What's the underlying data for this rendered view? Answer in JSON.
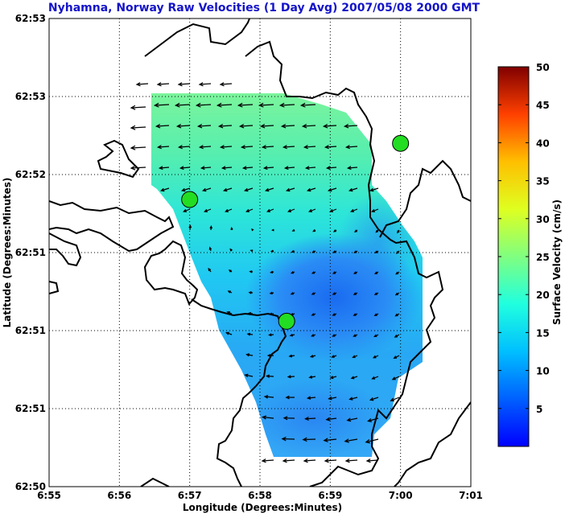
{
  "chart_data": {
    "type": "heatmap",
    "title": "Nyhamna, Norway Raw Velocities (1 Day Avg) 2007/05/08 2000 GMT",
    "xlabel": "Longitude (Degrees:Minutes)",
    "ylabel": "Latitude (Degrees:Minutes)",
    "x_ticks": [
      "6:55",
      "6:56",
      "6:57",
      "6:58",
      "6:59",
      "7:00",
      "7:01"
    ],
    "y_ticks": [
      "62:53",
      "62:53",
      "62:52",
      "62:51",
      "62:51",
      "62:51",
      "62:50"
    ],
    "grid": true,
    "colorbar": {
      "label": "Surface Velocity (cm/s)",
      "ticks": [
        5,
        10,
        15,
        20,
        25,
        30,
        35,
        40,
        45,
        50
      ],
      "range": [
        0,
        50
      ],
      "colormap": "jet"
    },
    "sites": [
      {
        "lon": 6.95,
        "lat": 62.864
      },
      {
        "lon": 6.973,
        "lat": 62.851
      },
      {
        "lon": 7.0,
        "lat": 62.87
      }
    ],
    "colors": {
      "title": "#1414c8",
      "site_fill": "#22dd22",
      "coast": "#000000"
    }
  }
}
